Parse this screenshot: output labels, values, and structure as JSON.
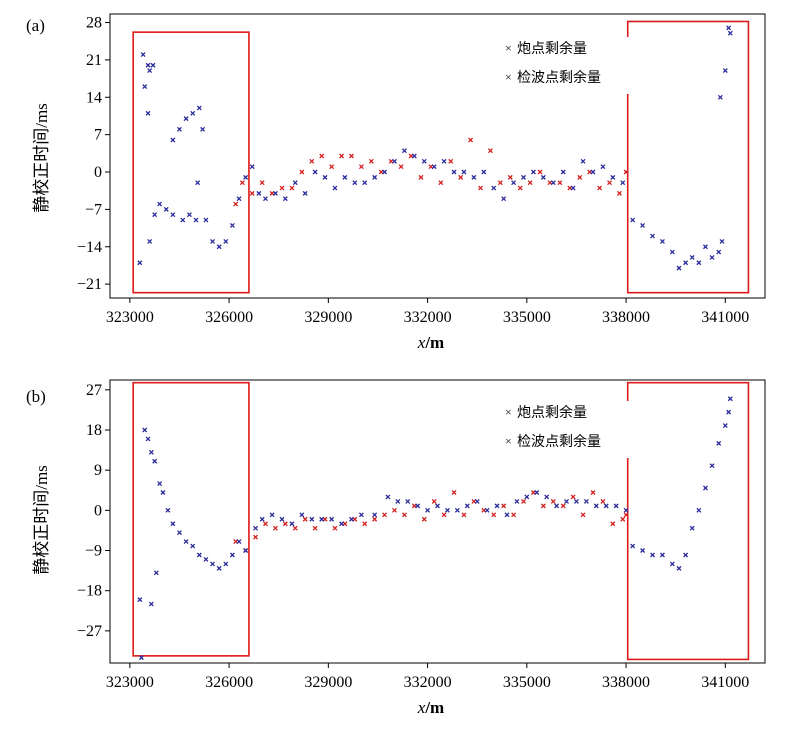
{
  "chart_data": [
    {
      "panel": "(a)",
      "type": "scatter",
      "xlabel": "x/m",
      "xlabel_var": "x",
      "xlabel_unit": "/m",
      "ylabel": "静校正时间/ms",
      "xlim": [
        322400,
        342200
      ],
      "ylim": [
        -23.6,
        29.6
      ],
      "xticks": [
        323000,
        326000,
        329000,
        332000,
        335000,
        338000,
        341000
      ],
      "yticks": [
        28,
        21,
        14,
        7,
        0,
        -7,
        -14,
        -21
      ],
      "grid": false,
      "legend_position": "top-right",
      "legend_entries": [
        "炮点剩余量",
        "检波点剩余量"
      ],
      "highlight_boxes": [
        {
          "x": [
            323100,
            326600
          ],
          "y": [
            -22.6,
            26.2
          ]
        },
        {
          "x": [
            338050,
            341700
          ],
          "y": [
            -22.6,
            28.2
          ]
        }
      ],
      "series": [
        {
          "name": "炮点剩余量",
          "color": "#d42020",
          "points": [
            [
              326200,
              -6
            ],
            [
              326400,
              -2
            ],
            [
              326700,
              -4
            ],
            [
              327000,
              -2
            ],
            [
              327300,
              -4
            ],
            [
              327600,
              -3
            ],
            [
              327900,
              -3
            ],
            [
              328200,
              0
            ],
            [
              328500,
              2
            ],
            [
              328800,
              3
            ],
            [
              329100,
              1
            ],
            [
              329400,
              3
            ],
            [
              329700,
              3
            ],
            [
              330000,
              1
            ],
            [
              330300,
              2
            ],
            [
              330600,
              0
            ],
            [
              330900,
              2
            ],
            [
              331200,
              1
            ],
            [
              331500,
              3
            ],
            [
              331800,
              -1
            ],
            [
              332100,
              1
            ],
            [
              332400,
              -2
            ],
            [
              332700,
              2
            ],
            [
              333000,
              -1
            ],
            [
              333300,
              6
            ],
            [
              333600,
              -3
            ],
            [
              333900,
              4
            ],
            [
              334200,
              -2
            ],
            [
              334500,
              -1
            ],
            [
              334800,
              -3
            ],
            [
              335100,
              -2
            ],
            [
              335400,
              0
            ],
            [
              335700,
              -2
            ],
            [
              336000,
              -2
            ],
            [
              336300,
              -3
            ],
            [
              336600,
              -1
            ],
            [
              336900,
              0
            ],
            [
              337200,
              -3
            ],
            [
              337500,
              -2
            ],
            [
              337800,
              -4
            ],
            [
              338000,
              0
            ]
          ]
        },
        {
          "name": "检波点剩余量",
          "color": "#2a2a9a",
          "points": [
            [
              323300,
              -17
            ],
            [
              323400,
              22
            ],
            [
              323450,
              16
            ],
            [
              323550,
              20
            ],
            [
              323600,
              19
            ],
            [
              323700,
              20
            ],
            [
              323550,
              11
            ],
            [
              323750,
              -8
            ],
            [
              323900,
              -6
            ],
            [
              324100,
              -7
            ],
            [
              324300,
              -8
            ],
            [
              323600,
              -13
            ],
            [
              324600,
              -9
            ],
            [
              324800,
              -8
            ],
            [
              325000,
              -9
            ],
            [
              324300,
              6
            ],
            [
              324500,
              8
            ],
            [
              324700,
              10
            ],
            [
              324900,
              11
            ],
            [
              325100,
              12
            ],
            [
              325200,
              8
            ],
            [
              325050,
              -2
            ],
            [
              325300,
              -9
            ],
            [
              325500,
              -13
            ],
            [
              325700,
              -14
            ],
            [
              325900,
              -13
            ],
            [
              326100,
              -10
            ],
            [
              326300,
              -5
            ],
            [
              326500,
              -1
            ],
            [
              326700,
              1
            ],
            [
              326900,
              -4
            ],
            [
              327100,
              -5
            ],
            [
              327400,
              -4
            ],
            [
              327700,
              -5
            ],
            [
              328000,
              -2
            ],
            [
              328300,
              -4
            ],
            [
              328600,
              0
            ],
            [
              328900,
              -1
            ],
            [
              329200,
              -3
            ],
            [
              329500,
              -1
            ],
            [
              329800,
              -2
            ],
            [
              330100,
              -2
            ],
            [
              330400,
              -1
            ],
            [
              330700,
              0
            ],
            [
              331000,
              2
            ],
            [
              331300,
              4
            ],
            [
              331600,
              3
            ],
            [
              331900,
              2
            ],
            [
              332200,
              1
            ],
            [
              332500,
              2
            ],
            [
              332800,
              0
            ],
            [
              333100,
              0
            ],
            [
              333400,
              -1
            ],
            [
              333700,
              0
            ],
            [
              334000,
              -3
            ],
            [
              334300,
              -5
            ],
            [
              334600,
              -2
            ],
            [
              334900,
              -1
            ],
            [
              335200,
              0
            ],
            [
              335500,
              -1
            ],
            [
              335800,
              -2
            ],
            [
              336100,
              0
            ],
            [
              336400,
              -3
            ],
            [
              336700,
              2
            ],
            [
              337000,
              0
            ],
            [
              337300,
              1
            ],
            [
              337600,
              -1
            ],
            [
              337900,
              -2
            ],
            [
              338200,
              -9
            ],
            [
              338500,
              -10
            ],
            [
              338800,
              -12
            ],
            [
              339100,
              -13
            ],
            [
              339400,
              -15
            ],
            [
              339600,
              -18
            ],
            [
              339800,
              -17
            ],
            [
              340000,
              -16
            ],
            [
              340200,
              -17
            ],
            [
              340400,
              -14
            ],
            [
              340600,
              -16
            ],
            [
              340800,
              -15
            ],
            [
              340900,
              -13
            ],
            [
              340850,
              14
            ],
            [
              341000,
              19
            ],
            [
              341100,
              27
            ],
            [
              341150,
              26
            ]
          ]
        }
      ]
    },
    {
      "panel": "(b)",
      "type": "scatter",
      "xlabel": "x/m",
      "xlabel_var": "x",
      "xlabel_unit": "/m",
      "ylabel": "静校正时间/ms",
      "xlim": [
        322400,
        342200
      ],
      "ylim": [
        -34.2,
        29.2
      ],
      "xticks": [
        323000,
        326000,
        329000,
        332000,
        335000,
        338000,
        341000
      ],
      "yticks": [
        27,
        18,
        9,
        0,
        -9,
        -18,
        -27
      ],
      "grid": false,
      "legend_position": "top-right",
      "legend_entries": [
        "炮点剩余量",
        "检波点剩余量"
      ],
      "highlight_boxes": [
        {
          "x": [
            323100,
            326600
          ],
          "y": [
            -32.6,
            28.6
          ]
        },
        {
          "x": [
            338050,
            341700
          ],
          "y": [
            -33.4,
            28.6
          ]
        }
      ],
      "series": [
        {
          "name": "炮点剩余量",
          "color": "#d42020",
          "points": [
            [
              326200,
              -7
            ],
            [
              326500,
              -9
            ],
            [
              326800,
              -6
            ],
            [
              327100,
              -3
            ],
            [
              327400,
              -4
            ],
            [
              327700,
              -3
            ],
            [
              328000,
              -4
            ],
            [
              328300,
              -2
            ],
            [
              328600,
              -4
            ],
            [
              328900,
              -2
            ],
            [
              329200,
              -4
            ],
            [
              329500,
              -3
            ],
            [
              329800,
              -2
            ],
            [
              330100,
              -3
            ],
            [
              330400,
              -2
            ],
            [
              330700,
              -1
            ],
            [
              331000,
              0
            ],
            [
              331300,
              -1
            ],
            [
              331600,
              1
            ],
            [
              331900,
              -2
            ],
            [
              332200,
              2
            ],
            [
              332500,
              -1
            ],
            [
              332800,
              4
            ],
            [
              333100,
              -1
            ],
            [
              333400,
              2
            ],
            [
              333700,
              0
            ],
            [
              334000,
              -1
            ],
            [
              334300,
              1
            ],
            [
              334600,
              -1
            ],
            [
              334900,
              2
            ],
            [
              335200,
              4
            ],
            [
              335500,
              1
            ],
            [
              335800,
              2
            ],
            [
              336100,
              1
            ],
            [
              336400,
              3
            ],
            [
              336700,
              -1
            ],
            [
              337000,
              4
            ],
            [
              337300,
              2
            ],
            [
              337600,
              -3
            ],
            [
              337900,
              -2
            ],
            [
              338000,
              -1
            ]
          ]
        },
        {
          "name": "检波点剩余量",
          "color": "#2a2a9a",
          "points": [
            [
              323300,
              -20
            ],
            [
              323350,
              -33
            ],
            [
              323450,
              18
            ],
            [
              323550,
              16
            ],
            [
              323650,
              13
            ],
            [
              323750,
              11
            ],
            [
              323900,
              6
            ],
            [
              324000,
              4
            ],
            [
              324150,
              0
            ],
            [
              324300,
              -3
            ],
            [
              324500,
              -5
            ],
            [
              324700,
              -7
            ],
            [
              324900,
              -8
            ],
            [
              325100,
              -10
            ],
            [
              325300,
              -11
            ],
            [
              325500,
              -12
            ],
            [
              325700,
              -13
            ],
            [
              325900,
              -12
            ],
            [
              326100,
              -10
            ],
            [
              326300,
              -7
            ],
            [
              326500,
              -9
            ],
            [
              323800,
              -14
            ],
            [
              323650,
              -21
            ],
            [
              326800,
              -4
            ],
            [
              327000,
              -2
            ],
            [
              327300,
              -1
            ],
            [
              327600,
              -2
            ],
            [
              327900,
              -3
            ],
            [
              328200,
              -1
            ],
            [
              328500,
              -2
            ],
            [
              328800,
              -2
            ],
            [
              329100,
              -2
            ],
            [
              329400,
              -3
            ],
            [
              329700,
              -2
            ],
            [
              330000,
              -1
            ],
            [
              330400,
              -1
            ],
            [
              330800,
              3
            ],
            [
              331100,
              2
            ],
            [
              331400,
              2
            ],
            [
              331700,
              1
            ],
            [
              332000,
              0
            ],
            [
              332300,
              1
            ],
            [
              332600,
              0
            ],
            [
              332900,
              0
            ],
            [
              333200,
              1
            ],
            [
              333500,
              2
            ],
            [
              333800,
              0
            ],
            [
              334100,
              1
            ],
            [
              334400,
              -1
            ],
            [
              334700,
              2
            ],
            [
              335000,
              3
            ],
            [
              335300,
              4
            ],
            [
              335600,
              3
            ],
            [
              335900,
              1
            ],
            [
              336200,
              2
            ],
            [
              336500,
              2
            ],
            [
              336800,
              2
            ],
            [
              337100,
              1
            ],
            [
              337400,
              1
            ],
            [
              337700,
              1
            ],
            [
              338000,
              0
            ],
            [
              338200,
              -8
            ],
            [
              338500,
              -9
            ],
            [
              338800,
              -10
            ],
            [
              339100,
              -10
            ],
            [
              339400,
              -12
            ],
            [
              339600,
              -13
            ],
            [
              339800,
              -10
            ],
            [
              340000,
              -4
            ],
            [
              340200,
              0
            ],
            [
              340400,
              5
            ],
            [
              340600,
              10
            ],
            [
              340800,
              15
            ],
            [
              341000,
              19
            ],
            [
              341100,
              22
            ],
            [
              341150,
              25
            ]
          ]
        }
      ]
    }
  ]
}
